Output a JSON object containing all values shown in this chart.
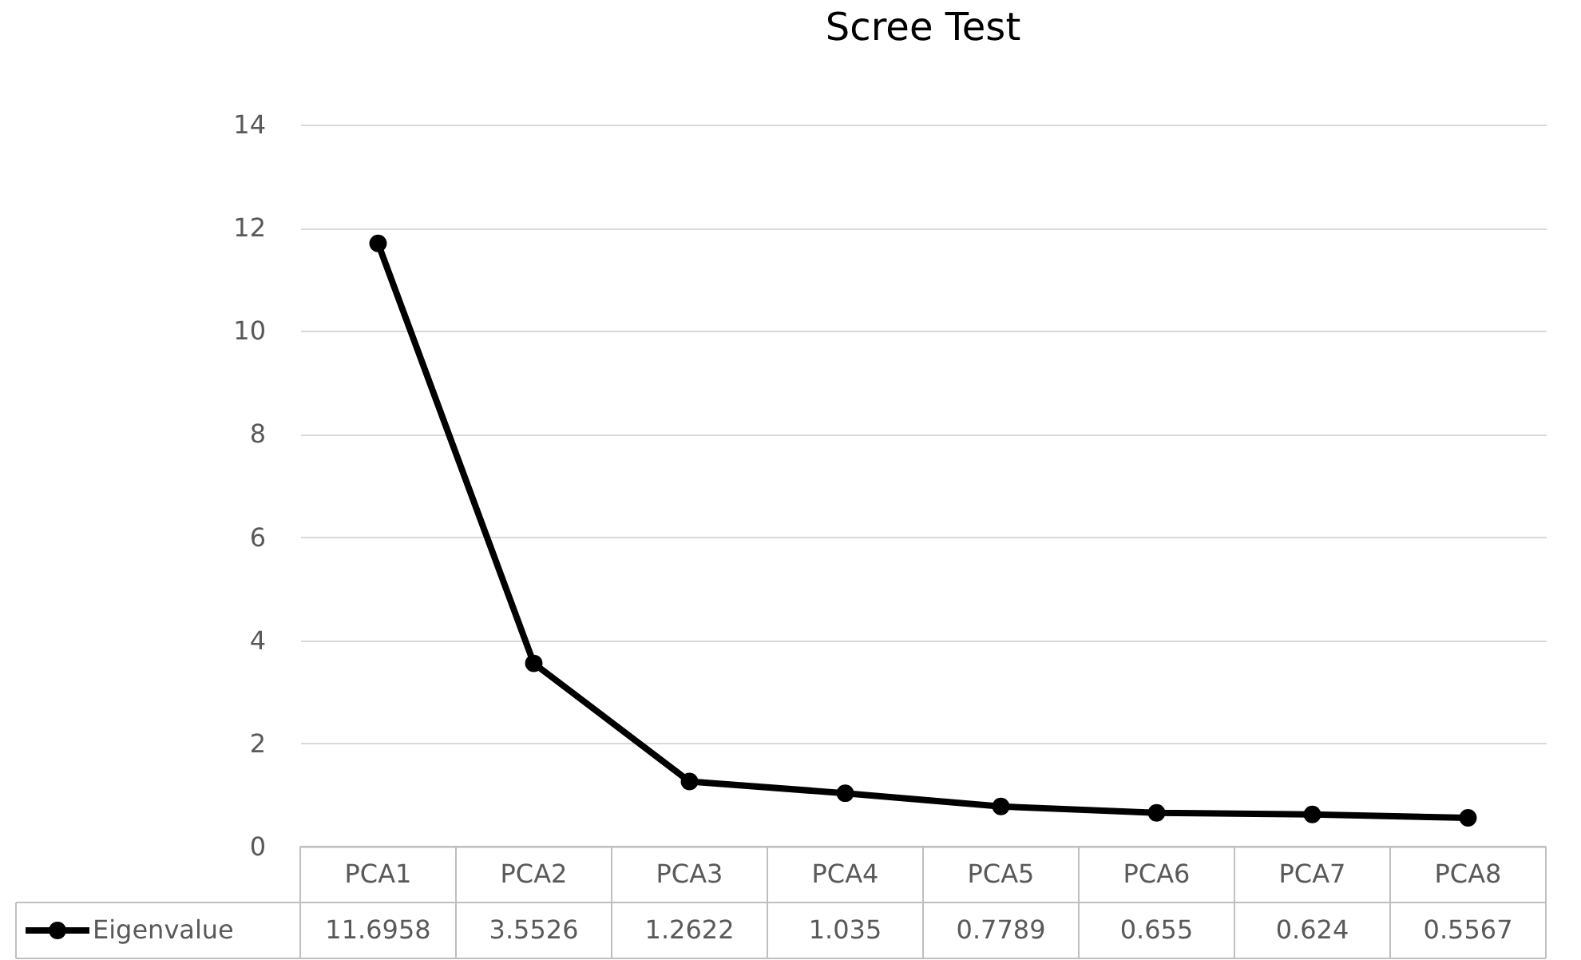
{
  "chart_data": {
    "type": "line",
    "title": "Scree Test",
    "categories": [
      "PCA1",
      "PCA2",
      "PCA3",
      "PCA4",
      "PCA5",
      "PCA6",
      "PCA7",
      "PCA8"
    ],
    "series": [
      {
        "name": "Eigenvalue",
        "color": "#000000",
        "values": [
          11.6958,
          3.5526,
          1.2622,
          1.035,
          0.7789,
          0.655,
          0.624,
          0.5567
        ]
      }
    ],
    "ylim": [
      0,
      14
    ],
    "yticks": [
      0,
      2,
      4,
      6,
      8,
      10,
      12,
      14
    ],
    "grid": "y",
    "marker": "circle",
    "line_style": "solid",
    "data_labels": true,
    "legend": "bottom"
  }
}
